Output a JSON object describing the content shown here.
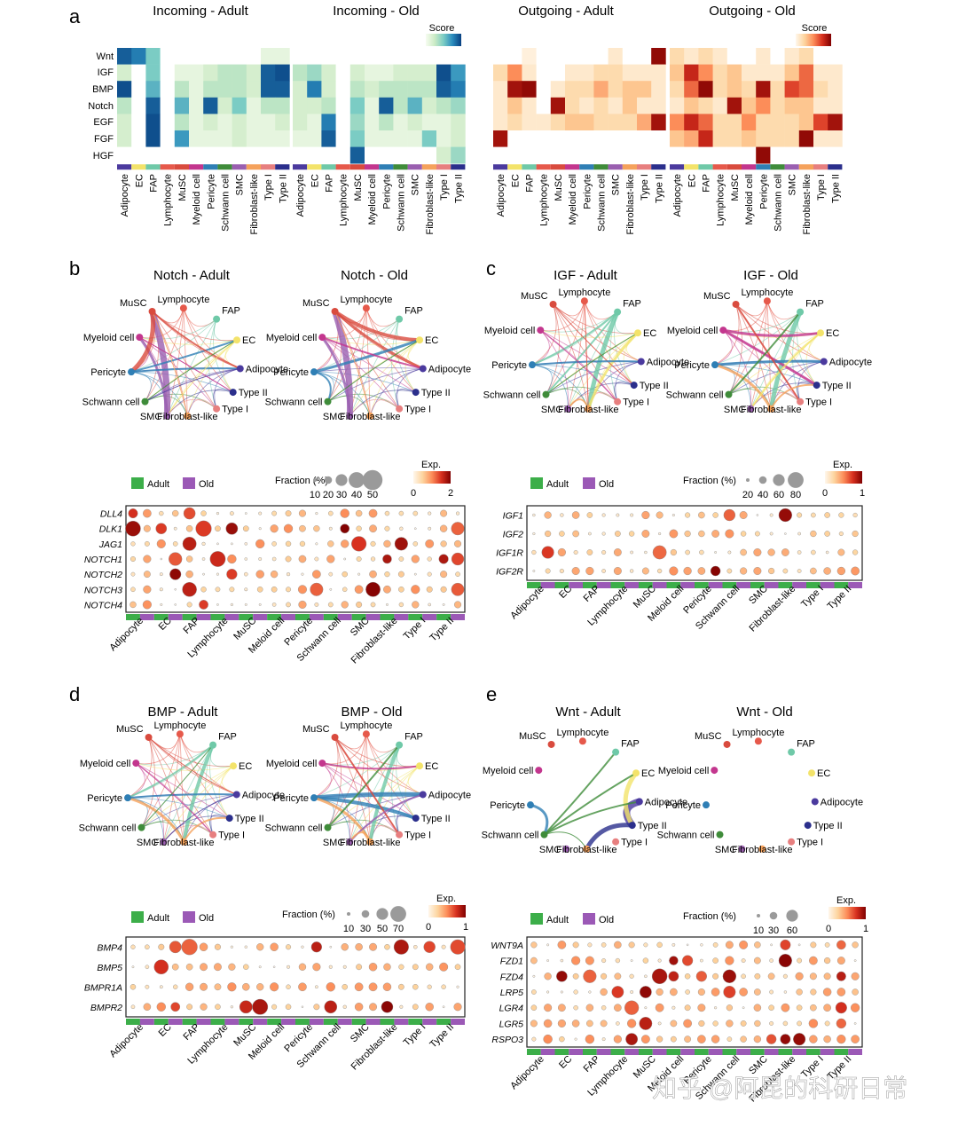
{
  "panel_letters": [
    "a",
    "b",
    "c",
    "d",
    "e"
  ],
  "cell_types": [
    "Adipocyte",
    "EC",
    "FAP",
    "Lymphocyte",
    "MuSC",
    "Myeloid cell",
    "Pericyte",
    "Schwann cell",
    "SMC",
    "Fibroblast-like",
    "Type I",
    "Type II"
  ],
  "dot_cell_types": [
    "Adipocyte",
    "EC",
    "FAP",
    "Lymphocyte",
    "MuSC",
    "Meloid cell",
    "Pericyte",
    "Schwann cell",
    "SMC",
    "Fibroblast-like",
    "Type I",
    "Type II"
  ],
  "cell_colors": [
    "#4b3a9e",
    "#f3e36a",
    "#6fc9a8",
    "#e6594b",
    "#d94b3e",
    "#c3368e",
    "#2f7fb5",
    "#3f8c3a",
    "#9a5fb0",
    "#f5a25c",
    "#e77f7f",
    "#2b2f8c"
  ],
  "heatmap": {
    "pathways": [
      "Wnt",
      "IGF",
      "BMP",
      "Notch",
      "EGF",
      "FGF",
      "HGF"
    ],
    "score_label": "Score",
    "score_min": "0",
    "score_max": "1",
    "titles": [
      "Incoming - Adult",
      "Incoming - Old",
      "Outgoing - Adult",
      "Outgoing - Old"
    ],
    "matrices": [
      [
        [
          0.9,
          0.8,
          0.5,
          0,
          0,
          0,
          0,
          0,
          0,
          0,
          0.1,
          0.1
        ],
        [
          0.2,
          0,
          0.5,
          0,
          0.1,
          0.1,
          0.2,
          0.3,
          0.3,
          0.2,
          0.9,
          0.95
        ],
        [
          0.95,
          0,
          0.6,
          0,
          0.3,
          0.1,
          0.3,
          0.3,
          0.3,
          0.2,
          0.9,
          0.9
        ],
        [
          0.3,
          0,
          0.9,
          0,
          0.6,
          0.1,
          0.9,
          0.2,
          0.5,
          0.1,
          0.3,
          0.3
        ],
        [
          0.2,
          0,
          0.95,
          0,
          0.3,
          0.1,
          0.2,
          0.1,
          0.2,
          0.1,
          0.1,
          0.2
        ],
        [
          0.2,
          0,
          0.95,
          0,
          0.7,
          0.1,
          0.1,
          0.1,
          0.2,
          0.1,
          0.1,
          0.1
        ],
        [
          0,
          0,
          0,
          0,
          0,
          0,
          0,
          0,
          0,
          0,
          0,
          0
        ]
      ],
      [
        [
          0,
          0,
          0,
          0,
          0,
          0,
          0,
          0,
          0,
          0,
          0,
          0
        ],
        [
          0.3,
          0.4,
          0.2,
          0,
          0.2,
          0.1,
          0.1,
          0.2,
          0.2,
          0.2,
          0.95,
          0.7
        ],
        [
          0.2,
          0.8,
          0.2,
          0,
          0.3,
          0.2,
          0.3,
          0.3,
          0.3,
          0.3,
          0.9,
          0.8
        ],
        [
          0.2,
          0.2,
          0.3,
          0,
          0.5,
          0.1,
          0.9,
          0.3,
          0.6,
          0.2,
          0.3,
          0.4
        ],
        [
          0.2,
          0.1,
          0.8,
          0,
          0.4,
          0.1,
          0.3,
          0.1,
          0.2,
          0.1,
          0.1,
          0.2
        ],
        [
          0.1,
          0.1,
          0.9,
          0,
          0.5,
          0.1,
          0.1,
          0.1,
          0.1,
          0.5,
          0.1,
          0.2
        ],
        [
          0,
          0,
          0,
          0,
          0.9,
          0,
          0,
          0,
          0,
          0,
          0.2,
          0.4
        ]
      ],
      [
        [
          0,
          0,
          0.05,
          0,
          0,
          0,
          0,
          0,
          0.1,
          0,
          0,
          0.95
        ],
        [
          0.2,
          0.5,
          0.1,
          0,
          0,
          0.1,
          0.1,
          0.2,
          0.2,
          0.1,
          0.1,
          0.1
        ],
        [
          0.1,
          0.9,
          0.95,
          0,
          0.1,
          0.2,
          0.2,
          0.4,
          0.2,
          0.3,
          0.3,
          0.1
        ],
        [
          0.1,
          0.3,
          0.1,
          0,
          0.9,
          0.2,
          0.1,
          0.2,
          0.1,
          0.3,
          0.1,
          0.1
        ],
        [
          0.1,
          0.2,
          0.1,
          0.1,
          0.2,
          0.3,
          0.3,
          0.2,
          0.2,
          0.2,
          0.4,
          0.9
        ],
        [
          0.9,
          0,
          0,
          0,
          0,
          0,
          0,
          0,
          0,
          0,
          0,
          0
        ],
        [
          0,
          0,
          0,
          0,
          0,
          0,
          0,
          0,
          0,
          0,
          0,
          0
        ]
      ],
      [
        [
          0.2,
          0.1,
          0.2,
          0.1,
          0,
          0,
          0.1,
          0,
          0.1,
          0.2,
          0,
          0
        ],
        [
          0.3,
          0.8,
          0.5,
          0.2,
          0.3,
          0.1,
          0.1,
          0.1,
          0.3,
          0.6,
          0.1,
          0.1
        ],
        [
          0.2,
          0.6,
          0.95,
          0.2,
          0.3,
          0.2,
          0.9,
          0.2,
          0.7,
          0.6,
          0.2,
          0.1
        ],
        [
          0.1,
          0.3,
          0.2,
          0.1,
          0.9,
          0.3,
          0.5,
          0.2,
          0.3,
          0.3,
          0.1,
          0.1
        ],
        [
          0.5,
          0.8,
          0.6,
          0.2,
          0.2,
          0.5,
          0.2,
          0.2,
          0.2,
          0.3,
          0.7,
          0.9
        ],
        [
          0.3,
          0.4,
          0.8,
          0.2,
          0.2,
          0.3,
          0.2,
          0.2,
          0.2,
          0.95,
          0.1,
          0.1
        ],
        [
          0,
          0,
          0,
          0,
          0,
          0,
          0.95,
          0,
          0,
          0,
          0,
          0
        ]
      ]
    ]
  },
  "networks": [
    {
      "title": "Notch - Adult",
      "labels": [
        "Lymphocyte",
        "FAP",
        "MuSC",
        "Myeloid cell",
        "EC",
        "Adipocyte",
        "Pericyte",
        "Type II",
        "Schwann cell",
        "Type I",
        "SMC",
        "Fibroblast-like"
      ]
    },
    {
      "title": "Notch - Old",
      "labels": [
        "Lymphocyte",
        "FAP",
        "MuSC",
        "Myeloid cell",
        "EC",
        "Adipocyte",
        "Pericyte",
        "Type II",
        "Schwann cell",
        "Type I",
        "SMC",
        "Fibroblast-like"
      ]
    },
    {
      "title": "IGF - Adult",
      "labels": [
        "Lymphocyte",
        "FAP",
        "MuSC",
        "EC",
        "Myeloid cell",
        "Adipocyte",
        "Pericyte",
        "Type II",
        "Schwann cell",
        "Type I",
        "SMC",
        "Fibroblast-like"
      ]
    },
    {
      "title": "IGF - Old",
      "labels": [
        "Lymphocyte",
        "FAP",
        "MuSC",
        "EC",
        "Myeloid cell",
        "Adipocyte",
        "Pericyte",
        "Type II",
        "Schwann cell",
        "Type I",
        "SMC",
        "Fibroblast-like"
      ]
    },
    {
      "title": "BMP - Adult",
      "labels": [
        "Lymphocyte",
        "FAP",
        "MuSC",
        "EC",
        "Myeloid cell",
        "Adipocyte",
        "Pericyte",
        "Type II",
        "Schwann cell",
        "Type I",
        "SMC",
        "Fibroblast-like"
      ]
    },
    {
      "title": "BMP - Old",
      "labels": [
        "Lymphocyte",
        "FAP",
        "MuSC",
        "EC",
        "Myeloid cell",
        "Adipocyte",
        "Pericyte",
        "Type II",
        "Schwann cell",
        "Type I",
        "SMC",
        "Fibroblast-like"
      ]
    },
    {
      "title": "Wnt - Adult",
      "labels": [
        "Lymphocyte",
        "FAP",
        "MuSC",
        "EC",
        "Myeloid cell",
        "Adipocyte",
        "Pericyte",
        "Type II",
        "Schwann cell",
        "Type I",
        "SMC",
        "Fibroblast-like"
      ]
    },
    {
      "title": "Wnt - Old",
      "labels": [
        "Lymphocyte",
        "FAP",
        "MuSC",
        "EC",
        "Myeloid cell",
        "Adipocyte",
        "Pericyte",
        "Type II",
        "Schwann cell",
        "Type I",
        "SMC",
        "Fibroblast-like"
      ]
    }
  ],
  "dotplots": [
    {
      "genes": [
        "DLL4",
        "DLK1",
        "JAG1",
        "NOTCH1",
        "NOTCH2",
        "NOTCH3",
        "NOTCH4"
      ],
      "fraction_label": "Fraction (%)",
      "fraction_ticks": [
        "10",
        "20",
        "30",
        "40",
        "50"
      ],
      "exp_label": "Exp.",
      "exp_min": "0",
      "exp_max": "2"
    },
    {
      "genes": [
        "IGF1",
        "IGF2",
        "IGF1R",
        "IGF2R"
      ],
      "fraction_label": "Fraction (%)",
      "fraction_ticks": [
        "20",
        "40",
        "60",
        "80"
      ],
      "exp_label": "Exp.",
      "exp_min": "0",
      "exp_max": "1"
    },
    {
      "genes": [
        "BMP4",
        "BMP5",
        "BMPR1A",
        "BMPR2"
      ],
      "fraction_label": "Fraction (%)",
      "fraction_ticks": [
        "10",
        "30",
        "50",
        "70"
      ],
      "exp_label": "Exp.",
      "exp_min": "0",
      "exp_max": "1"
    },
    {
      "genes": [
        "WNT9A",
        "FZD1",
        "FZD4",
        "LRP5",
        "LGR4",
        "LGR5",
        "RSPO3"
      ],
      "fraction_label": "Fraction (%)",
      "fraction_ticks": [
        "10",
        "30",
        "60"
      ],
      "exp_label": "Exp.",
      "exp_min": "0",
      "exp_max": "1"
    }
  ],
  "legend": {
    "adult": "Adult",
    "old": "Old",
    "adult_color": "#3cae49",
    "old_color": "#9b59b6"
  },
  "watermark": "知乎 @阿昆的科研日常"
}
